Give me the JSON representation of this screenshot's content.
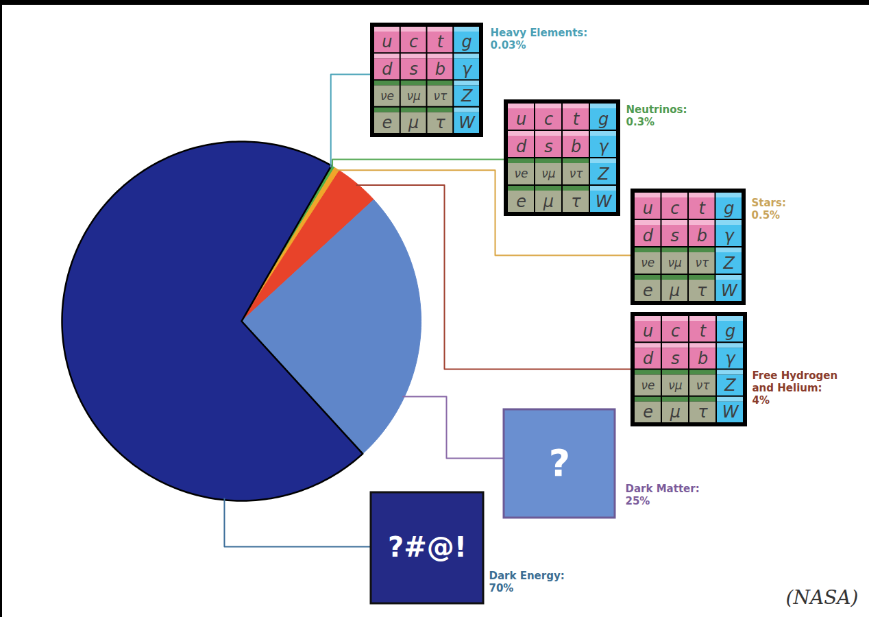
{
  "chart_data": {
    "type": "pie",
    "categories": [
      "Heavy Elements:",
      "Neutrinos:",
      "Stars:",
      "Free Hydrogen and Helium:",
      "Dark Matter:",
      "Dark Energy:"
    ],
    "values": [
      0.03,
      0.3,
      0.5,
      4,
      25,
      70
    ],
    "value_labels": [
      "0.03%",
      "0.3%",
      "0.5%",
      "4%",
      "25%",
      "70%"
    ],
    "colors": [
      "#3fa0b0",
      "#4fb04a",
      "#f0a62a",
      "#e8432a",
      "#5f86c9",
      "#1f2a8e"
    ],
    "data_labels": true,
    "icon_texts": [
      null,
      null,
      null,
      null,
      "?",
      "?#@!"
    ],
    "particle_table": [
      [
        "u",
        "c",
        "t",
        "g"
      ],
      [
        "d",
        "s",
        "b",
        "γ"
      ],
      [
        "νe",
        "νμ",
        "ντ",
        "Z"
      ],
      [
        "e",
        "μ",
        "τ",
        "W"
      ]
    ],
    "caption": "(NASA)"
  }
}
